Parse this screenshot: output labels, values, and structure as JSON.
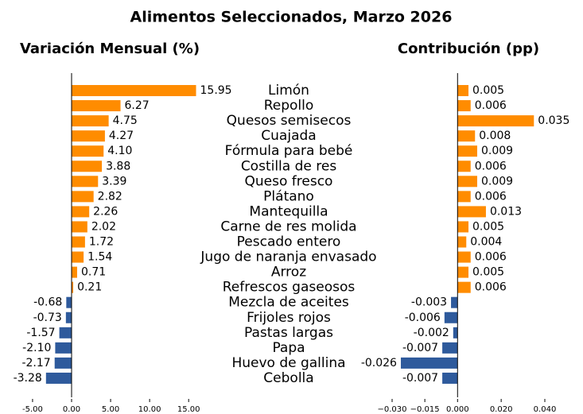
{
  "title": "Alimentos Seleccionados, Marzo 2026",
  "categories": [
    "Limón",
    "Repollo",
    "Quesos semisecos",
    "Cuajada",
    "Fórmula para bebé",
    "Costilla de res",
    "Queso fresco",
    "Plátano",
    "Mantequilla",
    "Carne de res molida",
    "Pescado entero",
    "Jugo de naranja envasado",
    "Arroz",
    "Refrescos gaseosos",
    "Mezcla de aceites",
    "Frijoles rojos",
    "Pastas largas",
    "Papa",
    "Huevo de gallina",
    "Cebolla"
  ],
  "chart_data": [
    {
      "type": "barh",
      "title": "Variación Mensual (%)",
      "values": [
        15.95,
        6.27,
        4.75,
        4.27,
        4.1,
        3.88,
        3.39,
        2.82,
        2.26,
        2.02,
        1.72,
        1.54,
        0.71,
        0.21,
        -0.68,
        -0.73,
        -1.57,
        -2.1,
        -2.17,
        -3.28
      ],
      "value_labels": [
        "15.95",
        "6.27",
        "4.75",
        "4.27",
        "4.10",
        "3.88",
        "3.39",
        "2.82",
        "2.26",
        "2.02",
        "1.72",
        "1.54",
        "0.71",
        "0.21",
        "-0.68",
        "-0.73",
        "-1.57",
        "-2.10",
        "-2.17",
        "-3.28"
      ],
      "positive_color": "#ff8c00",
      "negative_color": "#2e5a9c",
      "xlim": [
        -5.3,
        16
      ],
      "xticks": [
        {
          "value": -5,
          "label": "-5.00"
        },
        {
          "value": 0,
          "label": "0.00"
        },
        {
          "value": 5,
          "label": "5.00"
        },
        {
          "value": 10,
          "label": "10.00"
        },
        {
          "value": 15,
          "label": "15.00"
        }
      ]
    },
    {
      "type": "barh",
      "title": "Contribución (pp)",
      "values": [
        0.005,
        0.006,
        0.035,
        0.008,
        0.009,
        0.006,
        0.009,
        0.006,
        0.013,
        0.005,
        0.004,
        0.006,
        0.005,
        0.006,
        -0.003,
        -0.006,
        -0.002,
        -0.007,
        -0.026,
        -0.007
      ],
      "positive_color": "#ff8c00",
      "negative_color": "#2e5a9c",
      "xlim": [
        -0.03,
        0.04
      ],
      "xticks": [
        {
          "value": -0.03,
          "label": "−0.030"
        },
        {
          "value": -0.015,
          "label": "−0.015"
        },
        {
          "value": 0,
          "label": "0.000"
        },
        {
          "value": 0.02,
          "label": "0.020"
        },
        {
          "value": 0.04,
          "label": "0.040"
        }
      ]
    }
  ]
}
